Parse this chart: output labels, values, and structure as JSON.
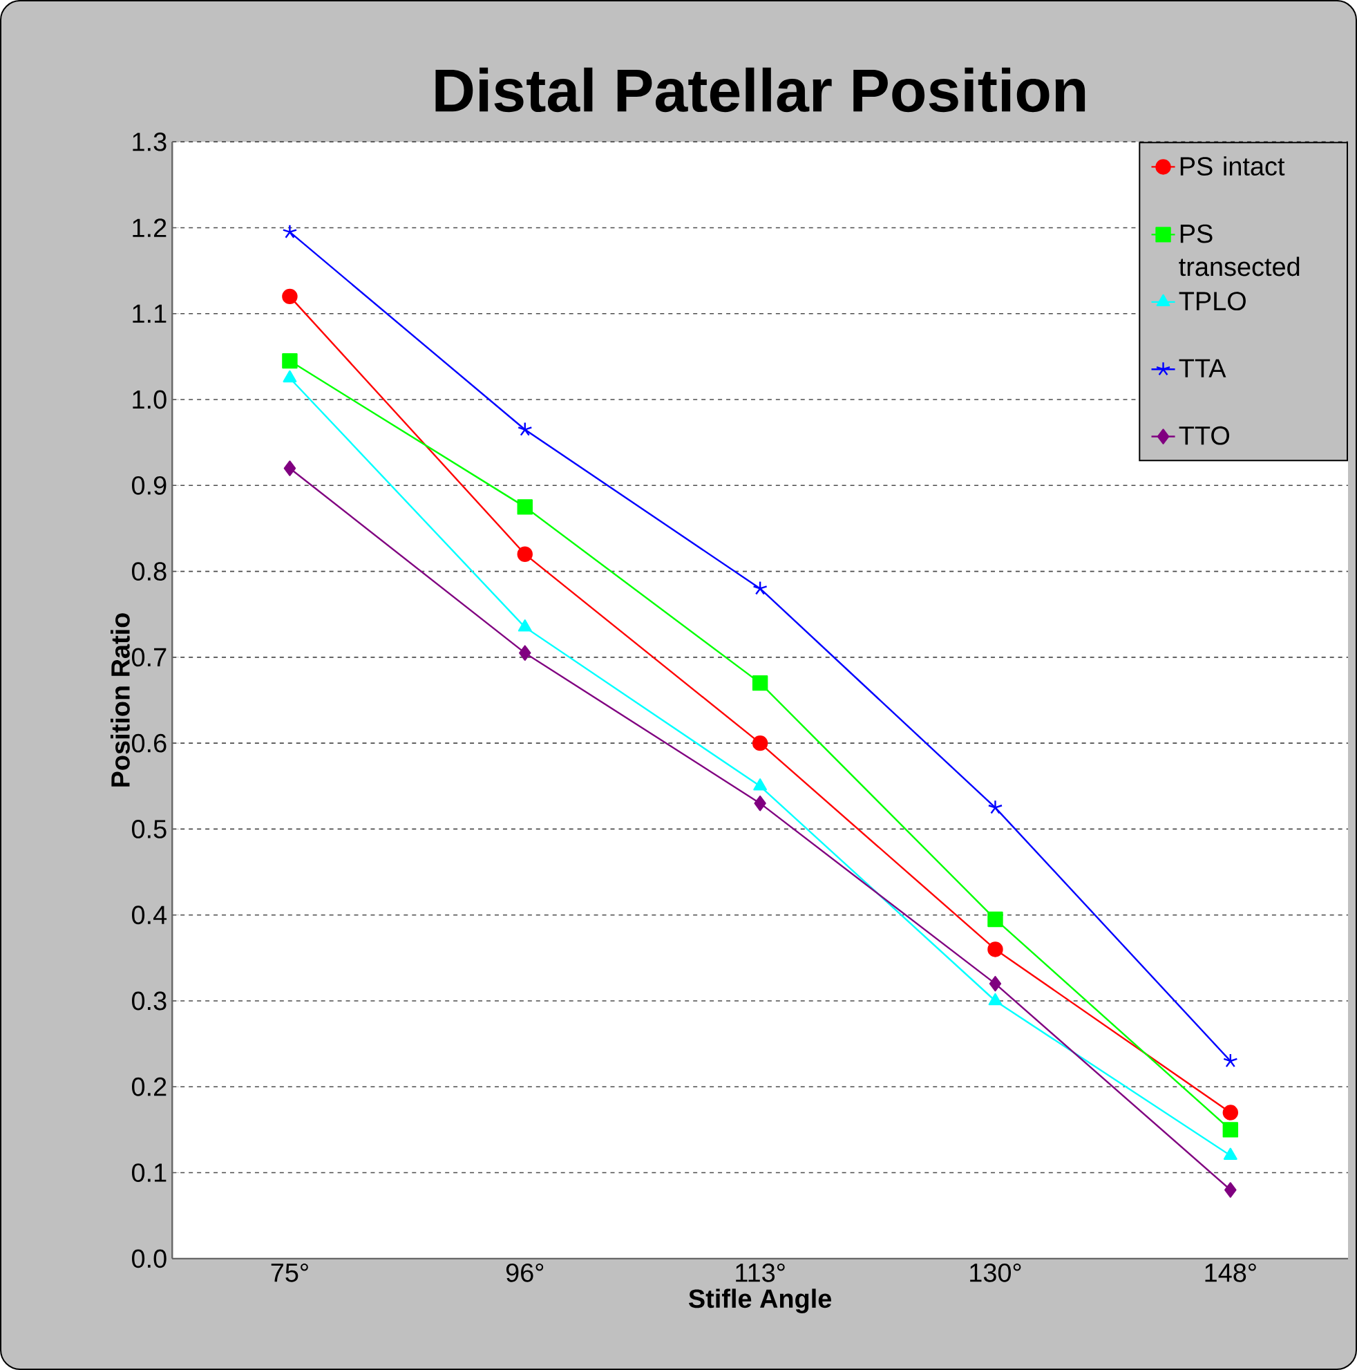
{
  "chart_data": {
    "type": "line",
    "title": "Distal Patellar Position",
    "xlabel": "Stifle Angle",
    "ylabel": "Position Ratio",
    "categories": [
      "75°",
      "96°",
      "113°",
      "130°",
      "148°"
    ],
    "series": [
      {
        "name": "PS intact",
        "color": "#ff0000",
        "marker": "circle",
        "values": [
          1.12,
          0.82,
          0.6,
          0.36,
          0.17
        ]
      },
      {
        "name": "PS transected",
        "color": "#00ff00",
        "marker": "square",
        "values": [
          1.045,
          0.875,
          0.67,
          0.395,
          0.15
        ]
      },
      {
        "name": "TPLO",
        "color": "#00ffff",
        "marker": "triangle",
        "values": [
          1.025,
          0.735,
          0.55,
          0.3,
          0.12
        ]
      },
      {
        "name": "TTA",
        "color": "#0000ff",
        "marker": "cross",
        "values": [
          1.195,
          0.965,
          0.78,
          0.525,
          0.23
        ]
      },
      {
        "name": "TTO",
        "color": "#800080",
        "marker": "diamond",
        "values": [
          0.92,
          0.705,
          0.53,
          0.32,
          0.08
        ]
      }
    ],
    "ylim": [
      0,
      1.3
    ],
    "yticks": [
      {
        "value": 0,
        "label": "0.0"
      },
      0.1,
      0.2,
      0.3,
      0.4,
      0.5,
      0.6,
      0.7,
      0.8,
      0.9,
      {
        "value": 1,
        "label": "1.0"
      },
      1.1,
      1.2,
      1.3
    ],
    "grid": "y",
    "legend": "top right",
    "line_style": "solid"
  }
}
